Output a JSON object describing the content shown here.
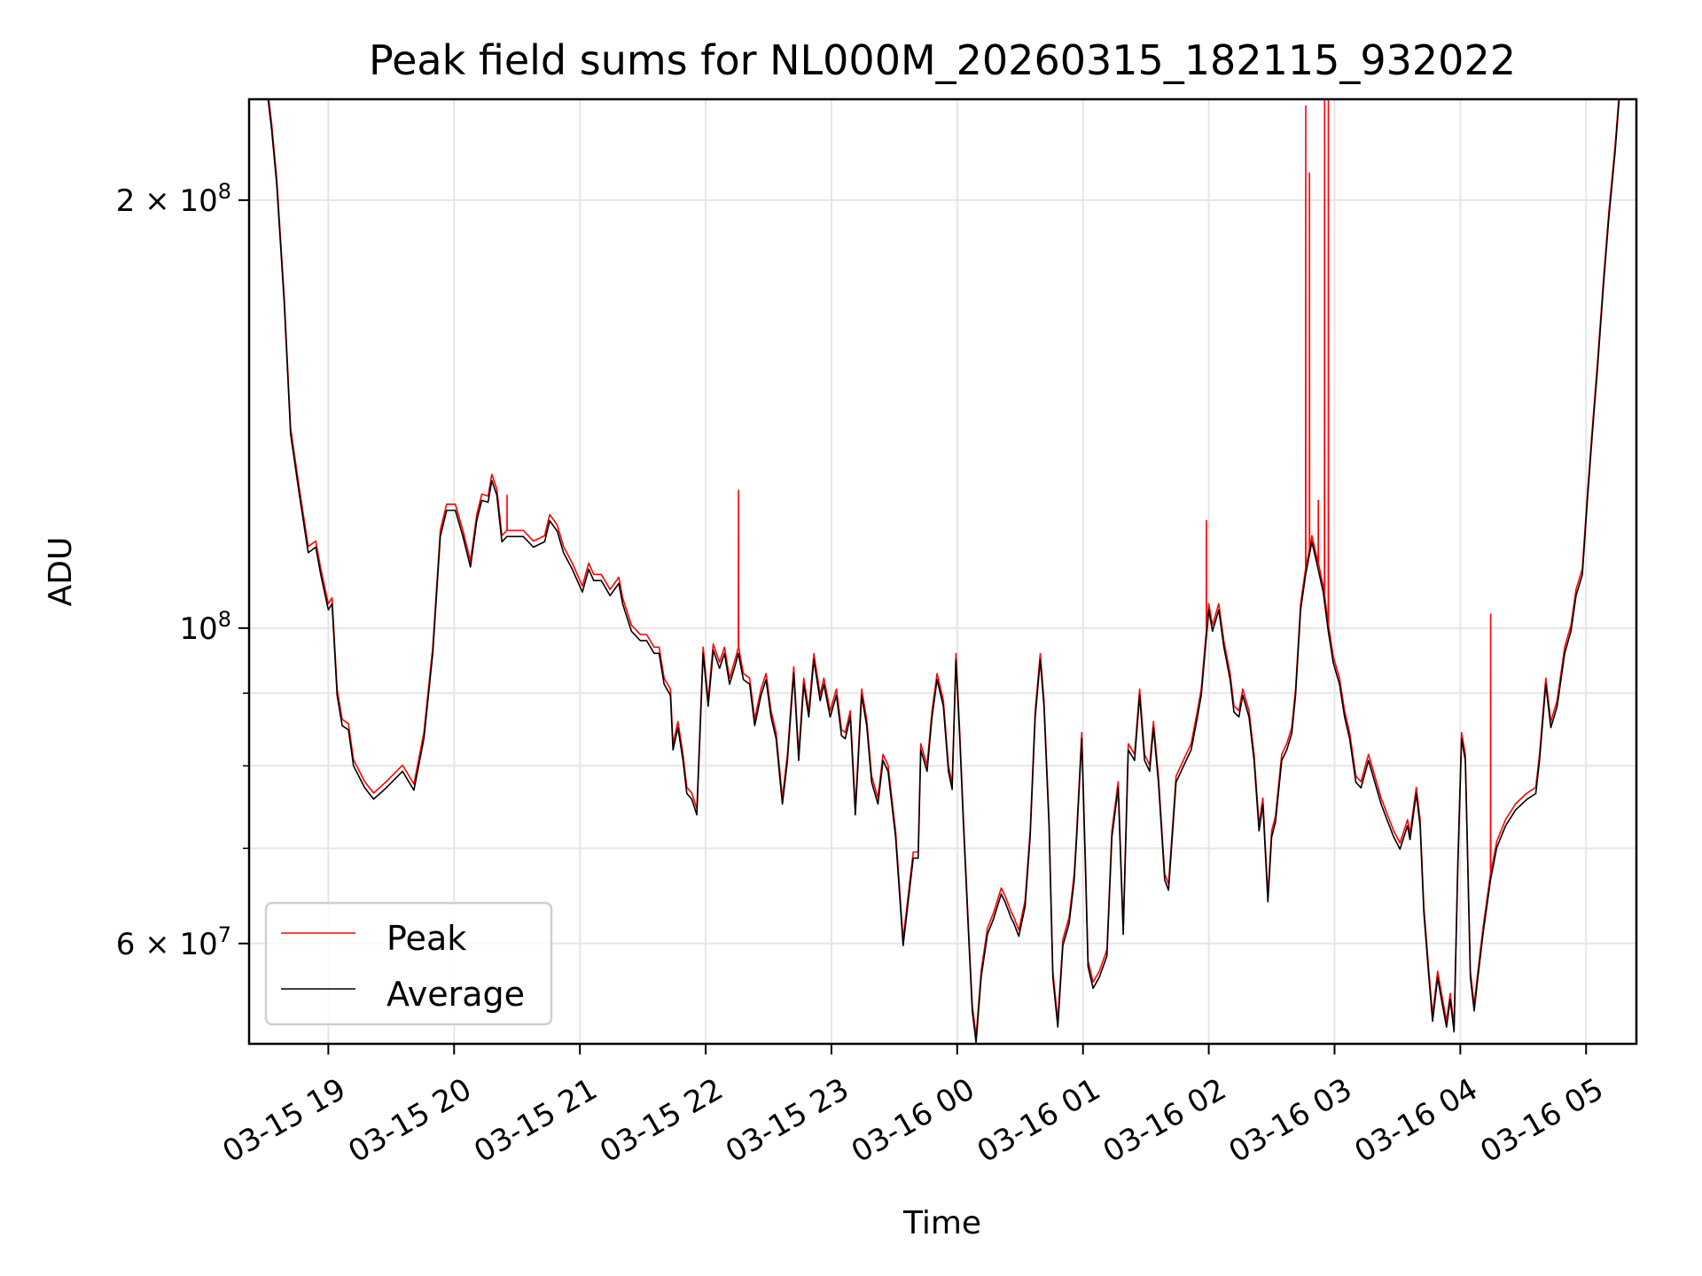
{
  "chart_data": {
    "type": "line",
    "title": "Peak field sums for NL000M_20260315_182115_932022",
    "xlabel": "Time",
    "ylabel": "ADU",
    "yscale": "log",
    "ylim": [
      51000000,
      235500000
    ],
    "xlim_hours_since_0315_0000": [
      18.37,
      29.4
    ],
    "grid": true,
    "legend_position": "lower-left",
    "x_ticks": [
      {
        "h": 19,
        "label": "03-15 19"
      },
      {
        "h": 20,
        "label": "03-15 20"
      },
      {
        "h": 21,
        "label": "03-15 21"
      },
      {
        "h": 22,
        "label": "03-15 22"
      },
      {
        "h": 23,
        "label": "03-15 23"
      },
      {
        "h": 24,
        "label": "03-16 00"
      },
      {
        "h": 25,
        "label": "03-16 01"
      },
      {
        "h": 26,
        "label": "03-16 02"
      },
      {
        "h": 27,
        "label": "03-16 03"
      },
      {
        "h": 28,
        "label": "03-16 04"
      },
      {
        "h": 29,
        "label": "03-16 05"
      }
    ],
    "y_ticks": [
      {
        "v": 200000000,
        "mant": "2 × 10",
        "exp": "8"
      },
      {
        "v": 100000000,
        "mant": "10",
        "exp": "8"
      },
      {
        "v": 60000000,
        "mant": "6 × 10",
        "exp": "7"
      }
    ],
    "y_minor_ticks": [
      70000000,
      80000000,
      90000000
    ],
    "series": [
      {
        "name": "Average",
        "color": "#000000",
        "unit_values": "millions ADU",
        "points": [
          [
            18.37,
            240
          ],
          [
            18.51,
            240
          ],
          [
            18.55,
            224
          ],
          [
            18.59,
            205
          ],
          [
            18.65,
            169
          ],
          [
            18.7,
            137
          ],
          [
            18.77,
            124
          ],
          [
            18.84,
            113
          ],
          [
            18.9,
            114
          ],
          [
            18.94,
            109
          ],
          [
            19.0,
            103
          ],
          [
            19.03,
            104
          ],
          [
            19.07,
            89.7
          ],
          [
            19.11,
            85.4
          ],
          [
            19.16,
            84.8
          ],
          [
            19.2,
            80
          ],
          [
            19.29,
            77.2
          ],
          [
            19.36,
            75.8
          ],
          [
            19.46,
            77.2
          ],
          [
            19.59,
            79.3
          ],
          [
            19.68,
            76.9
          ],
          [
            19.76,
            83.6
          ],
          [
            19.83,
            96
          ],
          [
            19.89,
            116
          ],
          [
            19.94,
            121
          ],
          [
            20.01,
            121
          ],
          [
            20.07,
            116
          ],
          [
            20.13,
            110.4
          ],
          [
            20.18,
            119
          ],
          [
            20.22,
            123
          ],
          [
            20.27,
            122.6
          ],
          [
            20.3,
            127
          ],
          [
            20.34,
            124
          ],
          [
            20.38,
            115
          ],
          [
            20.42,
            116
          ],
          [
            20.46,
            116
          ],
          [
            20.55,
            116
          ],
          [
            20.63,
            114
          ],
          [
            20.72,
            115
          ],
          [
            20.76,
            119
          ],
          [
            20.82,
            117
          ],
          [
            20.87,
            113
          ],
          [
            20.94,
            110
          ],
          [
            21.02,
            106
          ],
          [
            21.07,
            110
          ],
          [
            21.11,
            108
          ],
          [
            21.17,
            108
          ],
          [
            21.24,
            105.4
          ],
          [
            21.31,
            107.5
          ],
          [
            21.34,
            104
          ],
          [
            21.41,
            99.5
          ],
          [
            21.48,
            98
          ],
          [
            21.53,
            98
          ],
          [
            21.59,
            96
          ],
          [
            21.63,
            96
          ],
          [
            21.67,
            91.3
          ],
          [
            21.72,
            89.7
          ],
          [
            21.74,
            82.1
          ],
          [
            21.78,
            85.1
          ],
          [
            21.82,
            80.7
          ],
          [
            21.85,
            76.5
          ],
          [
            21.89,
            75.8
          ],
          [
            21.93,
            73.9
          ],
          [
            21.98,
            96
          ],
          [
            22.02,
            88.1
          ],
          [
            22.06,
            96.5
          ],
          [
            22.11,
            93.7
          ],
          [
            22.15,
            96
          ],
          [
            22.19,
            91.3
          ],
          [
            22.24,
            94.5
          ],
          [
            22.26,
            96
          ],
          [
            22.3,
            92
          ],
          [
            22.35,
            91.3
          ],
          [
            22.39,
            85.4
          ],
          [
            22.44,
            89.7
          ],
          [
            22.48,
            92
          ],
          [
            22.52,
            86.6
          ],
          [
            22.56,
            83.6
          ],
          [
            22.61,
            75.2
          ],
          [
            22.65,
            80.7
          ],
          [
            22.7,
            93
          ],
          [
            22.74,
            80.7
          ],
          [
            22.78,
            91.3
          ],
          [
            22.82,
            86.6
          ],
          [
            22.86,
            95
          ],
          [
            22.91,
            88.9
          ],
          [
            22.94,
            91.3
          ],
          [
            22.99,
            86.6
          ],
          [
            23.04,
            89.7
          ],
          [
            23.08,
            84
          ],
          [
            23.11,
            83.6
          ],
          [
            23.15,
            86.6
          ],
          [
            23.19,
            73.9
          ],
          [
            23.24,
            89.7
          ],
          [
            23.28,
            85.4
          ],
          [
            23.32,
            77.9
          ],
          [
            23.37,
            75.2
          ],
          [
            23.41,
            80.7
          ],
          [
            23.45,
            79.3
          ],
          [
            23.48,
            75.2
          ],
          [
            23.51,
            71.3
          ],
          [
            23.57,
            59.8
          ],
          [
            23.61,
            64.2
          ],
          [
            23.65,
            68.9
          ],
          [
            23.69,
            68.9
          ],
          [
            23.71,
            82.1
          ],
          [
            23.76,
            79.3
          ],
          [
            23.8,
            86.6
          ],
          [
            23.84,
            92
          ],
          [
            23.89,
            88.1
          ],
          [
            23.93,
            79.3
          ],
          [
            23.96,
            77
          ],
          [
            23.99,
            95
          ],
          [
            24.02,
            83.6
          ],
          [
            24.05,
            72.6
          ],
          [
            24.09,
            60.9
          ],
          [
            24.12,
            53.8
          ],
          [
            24.15,
            51.1
          ],
          [
            24.19,
            56.8
          ],
          [
            24.24,
            60.9
          ],
          [
            24.29,
            62.5
          ],
          [
            24.35,
            65
          ],
          [
            24.38,
            64.2
          ],
          [
            24.43,
            62.5
          ],
          [
            24.45,
            62
          ],
          [
            24.49,
            60.7
          ],
          [
            24.54,
            63.7
          ],
          [
            24.58,
            71.3
          ],
          [
            24.62,
            86.6
          ],
          [
            24.66,
            95
          ],
          [
            24.69,
            88.1
          ],
          [
            24.73,
            72.6
          ],
          [
            24.76,
            56.8
          ],
          [
            24.8,
            52.4
          ],
          [
            24.84,
            59.8
          ],
          [
            24.89,
            62
          ],
          [
            24.93,
            66.5
          ],
          [
            24.95,
            71.3
          ],
          [
            24.99,
            83.6
          ],
          [
            25.02,
            67.7
          ],
          [
            25.04,
            57.8
          ],
          [
            25.08,
            55.8
          ],
          [
            25.13,
            56.8
          ],
          [
            25.19,
            58.8
          ],
          [
            25.23,
            71.3
          ],
          [
            25.28,
            77.2
          ],
          [
            25.32,
            60.9
          ],
          [
            25.36,
            82.1
          ],
          [
            25.41,
            80.7
          ],
          [
            25.45,
            89.7
          ],
          [
            25.49,
            80.7
          ],
          [
            25.53,
            79.3
          ],
          [
            25.56,
            85.1
          ],
          [
            25.6,
            77.9
          ],
          [
            25.65,
            66.5
          ],
          [
            25.68,
            65.4
          ],
          [
            25.74,
            77.9
          ],
          [
            25.8,
            80
          ],
          [
            25.86,
            82.1
          ],
          [
            25.91,
            86.6
          ],
          [
            25.94,
            89.7
          ],
          [
            26.0,
            103
          ],
          [
            26.03,
            99.5
          ],
          [
            26.08,
            103
          ],
          [
            26.12,
            97
          ],
          [
            26.17,
            92
          ],
          [
            26.2,
            87.3
          ],
          [
            26.24,
            86.6
          ],
          [
            26.27,
            89.7
          ],
          [
            26.32,
            86.6
          ],
          [
            26.36,
            80.7
          ],
          [
            26.4,
            72
          ],
          [
            26.43,
            75.2
          ],
          [
            26.47,
            64.2
          ],
          [
            26.5,
            71.3
          ],
          [
            26.53,
            73
          ],
          [
            26.58,
            80.7
          ],
          [
            26.62,
            82.1
          ],
          [
            26.66,
            84.3
          ],
          [
            26.69,
            89.7
          ],
          [
            26.73,
            103
          ],
          [
            26.77,
            109
          ],
          [
            26.82,
            115
          ],
          [
            26.86,
            111
          ],
          [
            26.91,
            106
          ],
          [
            26.95,
            99.5
          ],
          [
            26.99,
            94.5
          ],
          [
            27.04,
            91.3
          ],
          [
            27.08,
            86.6
          ],
          [
            27.12,
            83.6
          ],
          [
            27.17,
            77.9
          ],
          [
            27.21,
            77.2
          ],
          [
            27.27,
            80.7
          ],
          [
            27.32,
            77.9
          ],
          [
            27.37,
            75.2
          ],
          [
            27.42,
            73.2
          ],
          [
            27.47,
            71.3
          ],
          [
            27.52,
            69.9
          ],
          [
            27.58,
            72.6
          ],
          [
            27.6,
            71
          ],
          [
            27.65,
            76.5
          ],
          [
            27.68,
            72.6
          ],
          [
            27.71,
            63.1
          ],
          [
            27.75,
            56.8
          ],
          [
            27.78,
            52.9
          ],
          [
            27.82,
            56.8
          ],
          [
            27.85,
            54.8
          ],
          [
            27.89,
            52.4
          ],
          [
            27.92,
            54.8
          ],
          [
            27.95,
            52
          ],
          [
            27.98,
            67.7
          ],
          [
            28.01,
            83.6
          ],
          [
            28.04,
            80.7
          ],
          [
            28.08,
            56.8
          ],
          [
            28.11,
            53.8
          ],
          [
            28.14,
            56.8
          ],
          [
            28.18,
            60.9
          ],
          [
            28.24,
            66.5
          ],
          [
            28.29,
            70.1
          ],
          [
            28.36,
            72.6
          ],
          [
            28.44,
            74.5
          ],
          [
            28.53,
            75.8
          ],
          [
            28.6,
            76.5
          ],
          [
            28.63,
            80.7
          ],
          [
            28.68,
            91.3
          ],
          [
            28.72,
            85.1
          ],
          [
            28.77,
            88.1
          ],
          [
            28.83,
            96
          ],
          [
            28.88,
            99.5
          ],
          [
            28.92,
            105.4
          ],
          [
            28.97,
            109
          ],
          [
            29.01,
            123
          ],
          [
            29.05,
            137
          ],
          [
            29.09,
            152
          ],
          [
            29.14,
            175
          ],
          [
            29.18,
            194
          ],
          [
            29.23,
            216
          ],
          [
            29.27,
            240
          ]
        ]
      },
      {
        "name": "Peak",
        "color": "#ff0000",
        "unit_values": "millions ADU",
        "ratio_to_average": 1.01,
        "spikes": [
          [
            20.42,
            124
          ],
          [
            22.26,
            125
          ],
          [
            25.98,
            119
          ],
          [
            26.77,
            233
          ],
          [
            26.8,
            209
          ],
          [
            26.87,
            123
          ],
          [
            26.92,
            240
          ],
          [
            26.95,
            240
          ],
          [
            28.24,
            102.3
          ]
        ]
      }
    ],
    "legend": [
      {
        "label": "Peak",
        "color": "#ff0000"
      },
      {
        "label": "Average",
        "color": "#000000"
      }
    ]
  }
}
